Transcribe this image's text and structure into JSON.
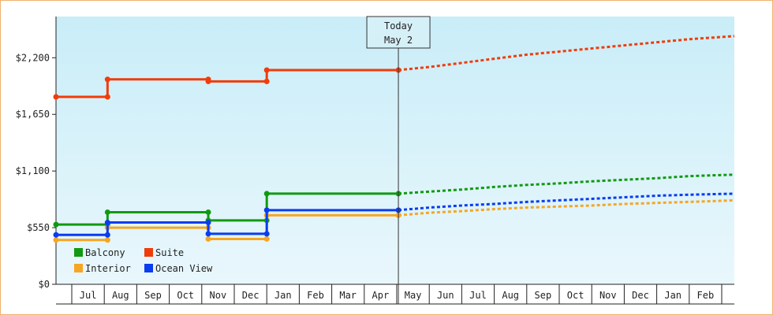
{
  "chart_data": {
    "type": "line",
    "interpolation": "step",
    "y_axis": {
      "ticks": [
        0,
        550,
        1100,
        1650,
        2200
      ],
      "tick_labels": [
        "$0",
        "$550",
        "$1,100",
        "$1,650",
        "$2,200"
      ],
      "ylim": [
        0,
        2600
      ]
    },
    "x_axis": {
      "months": [
        "Jul",
        "Aug",
        "Sep",
        "Oct",
        "Nov",
        "Dec",
        "Jan",
        "Feb",
        "Mar",
        "Apr",
        "May",
        "Jun",
        "Jul",
        "Aug",
        "Sep",
        "Oct",
        "Nov",
        "Dec",
        "Jan",
        "Feb"
      ],
      "grid": false
    },
    "today_marker": {
      "line1": "Today",
      "line2": "May 2",
      "x": 10.05
    },
    "legend": {
      "placement": "bottom-left",
      "columns": 2
    },
    "series": [
      {
        "name": "Balcony",
        "color": "#119a11",
        "points": [
          [
            -0.5,
            580
          ],
          [
            1.1,
            580
          ],
          [
            1.1,
            700
          ],
          [
            4.2,
            700
          ],
          [
            4.2,
            620
          ],
          [
            6.0,
            620
          ],
          [
            6.0,
            880
          ],
          [
            10.05,
            880
          ]
        ],
        "projection": [
          [
            10.05,
            880
          ],
          [
            11,
            900
          ],
          [
            12,
            920
          ],
          [
            13,
            945
          ],
          [
            14,
            965
          ],
          [
            15,
            980
          ],
          [
            16,
            1000
          ],
          [
            17,
            1015
          ],
          [
            18,
            1030
          ],
          [
            19,
            1050
          ],
          [
            20.4,
            1065
          ]
        ]
      },
      {
        "name": "Suite",
        "color": "#f03c0a",
        "points": [
          [
            -0.5,
            1820
          ],
          [
            1.1,
            1820
          ],
          [
            1.1,
            1990
          ],
          [
            4.2,
            1990
          ],
          [
            4.2,
            1970
          ],
          [
            6.0,
            1970
          ],
          [
            6.0,
            2080
          ],
          [
            10.05,
            2080
          ]
        ],
        "projection": [
          [
            10.05,
            2080
          ],
          [
            11,
            2110
          ],
          [
            12,
            2150
          ],
          [
            13,
            2190
          ],
          [
            14,
            2230
          ],
          [
            15,
            2260
          ],
          [
            16,
            2290
          ],
          [
            17,
            2320
          ],
          [
            18,
            2350
          ],
          [
            19,
            2380
          ],
          [
            20.4,
            2410
          ]
        ]
      },
      {
        "name": "Interior",
        "color": "#f5a623",
        "points": [
          [
            -0.5,
            430
          ],
          [
            1.1,
            430
          ],
          [
            1.1,
            550
          ],
          [
            4.2,
            550
          ],
          [
            4.2,
            440
          ],
          [
            6.0,
            440
          ],
          [
            6.0,
            670
          ],
          [
            10.05,
            670
          ]
        ],
        "projection": [
          [
            10.05,
            670
          ],
          [
            11,
            695
          ],
          [
            12,
            710
          ],
          [
            13,
            730
          ],
          [
            14,
            745
          ],
          [
            15,
            755
          ],
          [
            16,
            765
          ],
          [
            17,
            780
          ],
          [
            18,
            790
          ],
          [
            19,
            800
          ],
          [
            20.4,
            815
          ]
        ]
      },
      {
        "name": "Ocean View",
        "color": "#0a3cf0",
        "points": [
          [
            -0.5,
            480
          ],
          [
            1.1,
            480
          ],
          [
            1.1,
            600
          ],
          [
            4.2,
            600
          ],
          [
            4.2,
            490
          ],
          [
            6.0,
            490
          ],
          [
            6.0,
            720
          ],
          [
            10.05,
            720
          ]
        ],
        "projection": [
          [
            10.05,
            720
          ],
          [
            11,
            745
          ],
          [
            12,
            765
          ],
          [
            13,
            780
          ],
          [
            14,
            800
          ],
          [
            15,
            815
          ],
          [
            16,
            830
          ],
          [
            17,
            845
          ],
          [
            18,
            860
          ],
          [
            19,
            870
          ],
          [
            20.4,
            880
          ]
        ]
      }
    ]
  }
}
